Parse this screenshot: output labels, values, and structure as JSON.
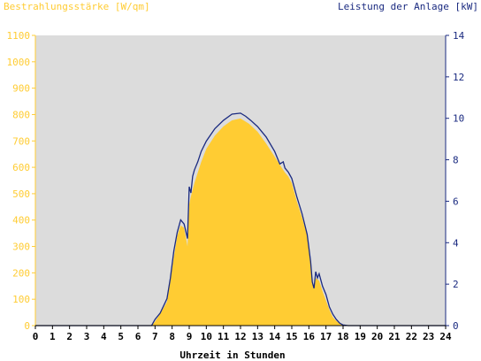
{
  "chart_data": {
    "type": "area",
    "left_axis_label": "Bestrahlungsstärke [W/qm]",
    "right_axis_label": "Leistung der Anlage [kW]",
    "xlabel": "Uhrzeit in Stunden",
    "x_ticks": [
      "0",
      "1",
      "2",
      "3",
      "4",
      "5",
      "6",
      "7",
      "8",
      "9",
      "10",
      "11",
      "12",
      "13",
      "14",
      "15",
      "16",
      "17",
      "18",
      "19",
      "20",
      "21",
      "22",
      "23",
      "24"
    ],
    "y_left_ticks": [
      "0",
      "100",
      "200",
      "300",
      "400",
      "500",
      "600",
      "700",
      "800",
      "900",
      "1000",
      "1100"
    ],
    "y_right_ticks": [
      "0",
      "2",
      "4",
      "6",
      "8",
      "10",
      "12",
      "14"
    ],
    "xlim": [
      0,
      24
    ],
    "ylim_left": [
      0,
      1100
    ],
    "ylim_right": [
      0,
      14
    ],
    "grid": false,
    "colors": {
      "plot_background": "#dcdcdc",
      "irradiance_fill": "#ffcc33",
      "power_line": "#1a2a80",
      "left_axis_text": "#ffcc33",
      "right_axis_text": "#1a2a80"
    },
    "series": [
      {
        "type": "area",
        "axis": "left",
        "x": [
          0,
          6.8,
          7.0,
          7.3,
          7.7,
          7.9,
          8.1,
          8.3,
          8.5,
          8.7,
          8.9,
          9.0,
          9.1,
          9.3,
          9.5,
          9.7,
          10.0,
          10.5,
          11.0,
          11.5,
          12.0,
          12.5,
          13.0,
          13.5,
          14.0,
          14.4,
          14.6,
          14.8,
          15.0,
          15.3,
          15.6,
          15.9,
          16.1,
          16.2,
          16.3,
          16.4,
          16.6,
          16.8,
          17.0,
          17.2,
          17.4,
          17.6,
          17.8,
          18.0,
          18.2,
          24
        ],
        "y": [
          0,
          0,
          15,
          45,
          90,
          170,
          260,
          340,
          380,
          370,
          300,
          460,
          490,
          540,
          580,
          620,
          670,
          720,
          755,
          778,
          785,
          765,
          735,
          690,
          640,
          600,
          580,
          565,
          540,
          470,
          410,
          340,
          240,
          170,
          140,
          180,
          170,
          130,
          95,
          60,
          32,
          18,
          8,
          2,
          0,
          0
        ]
      },
      {
        "type": "line",
        "axis": "right",
        "x": [
          0,
          6.8,
          7.0,
          7.3,
          7.7,
          7.9,
          8.1,
          8.3,
          8.5,
          8.7,
          8.9,
          9.0,
          9.1,
          9.2,
          9.3,
          9.5,
          9.7,
          10.0,
          10.5,
          11.0,
          11.5,
          12.0,
          12.3,
          12.6,
          13.0,
          13.5,
          14.0,
          14.3,
          14.5,
          14.6,
          14.8,
          15.0,
          15.3,
          15.6,
          15.9,
          16.1,
          16.2,
          16.3,
          16.4,
          16.5,
          16.6,
          16.8,
          17.0,
          17.2,
          17.4,
          17.6,
          17.8,
          18.0,
          18.3,
          24
        ],
        "y": [
          0,
          0,
          0.3,
          0.6,
          1.3,
          2.3,
          3.6,
          4.5,
          5.1,
          4.9,
          4.2,
          6.7,
          6.4,
          7.2,
          7.5,
          7.9,
          8.4,
          8.9,
          9.5,
          9.9,
          10.2,
          10.25,
          10.1,
          9.9,
          9.6,
          9.1,
          8.4,
          7.8,
          7.9,
          7.6,
          7.4,
          7.1,
          6.2,
          5.4,
          4.4,
          3.1,
          2.1,
          1.8,
          2.6,
          2.3,
          2.5,
          1.9,
          1.5,
          0.9,
          0.55,
          0.3,
          0.12,
          0.03,
          0,
          0
        ]
      }
    ]
  }
}
